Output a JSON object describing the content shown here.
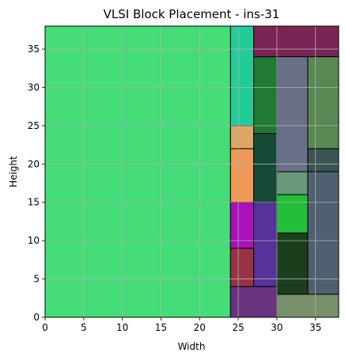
{
  "chart_data": {
    "type": "block-placement",
    "title": "VLSI Block Placement - ins-31",
    "xlabel": "Width",
    "ylabel": "Height",
    "xlim": [
      0,
      38
    ],
    "ylim": [
      0,
      38
    ],
    "xticks": [
      0,
      5,
      10,
      15,
      20,
      25,
      30,
      35
    ],
    "yticks": [
      0,
      5,
      10,
      15,
      20,
      25,
      30,
      35
    ],
    "grid": true,
    "blocks": [
      {
        "x": 0,
        "y": 0,
        "w": 24,
        "h": 38,
        "color": "#44dd77"
      },
      {
        "x": 24,
        "y": 25,
        "w": 3,
        "h": 13,
        "color": "#22cc99"
      },
      {
        "x": 27,
        "y": 34,
        "w": 11,
        "h": 4,
        "color": "#7a2555"
      },
      {
        "x": 27,
        "y": 24,
        "w": 3,
        "h": 10,
        "color": "#1f7a33"
      },
      {
        "x": 30,
        "y": 19,
        "w": 4,
        "h": 15,
        "color": "#6a7088"
      },
      {
        "x": 34,
        "y": 22,
        "w": 4,
        "h": 12,
        "color": "#5a8855"
      },
      {
        "x": 24,
        "y": 22,
        "w": 3,
        "h": 3,
        "color": "#dda866"
      },
      {
        "x": 24,
        "y": 15,
        "w": 3,
        "h": 7,
        "color": "#ee9955"
      },
      {
        "x": 27,
        "y": 15,
        "w": 3,
        "h": 9,
        "color": "#144a36"
      },
      {
        "x": 34,
        "y": 19,
        "w": 4,
        "h": 3,
        "color": "#3a5552"
      },
      {
        "x": 30,
        "y": 16,
        "w": 4,
        "h": 3,
        "color": "#66997a"
      },
      {
        "x": 30,
        "y": 11,
        "w": 4,
        "h": 5,
        "color": "#22c038"
      },
      {
        "x": 34,
        "y": 3,
        "w": 4,
        "h": 16,
        "color": "#4f6070"
      },
      {
        "x": 24,
        "y": 9,
        "w": 3,
        "h": 6,
        "color": "#aa11bb"
      },
      {
        "x": 27,
        "y": 4,
        "w": 3,
        "h": 11,
        "color": "#55339a"
      },
      {
        "x": 24,
        "y": 4,
        "w": 3,
        "h": 5,
        "color": "#993344"
      },
      {
        "x": 30,
        "y": 3,
        "w": 4,
        "h": 8,
        "color": "#1b3f1d"
      },
      {
        "x": 24,
        "y": 0,
        "w": 6,
        "h": 4,
        "color": "#6a3380"
      },
      {
        "x": 30,
        "y": 0,
        "w": 8,
        "h": 3,
        "color": "#77906a"
      }
    ]
  }
}
